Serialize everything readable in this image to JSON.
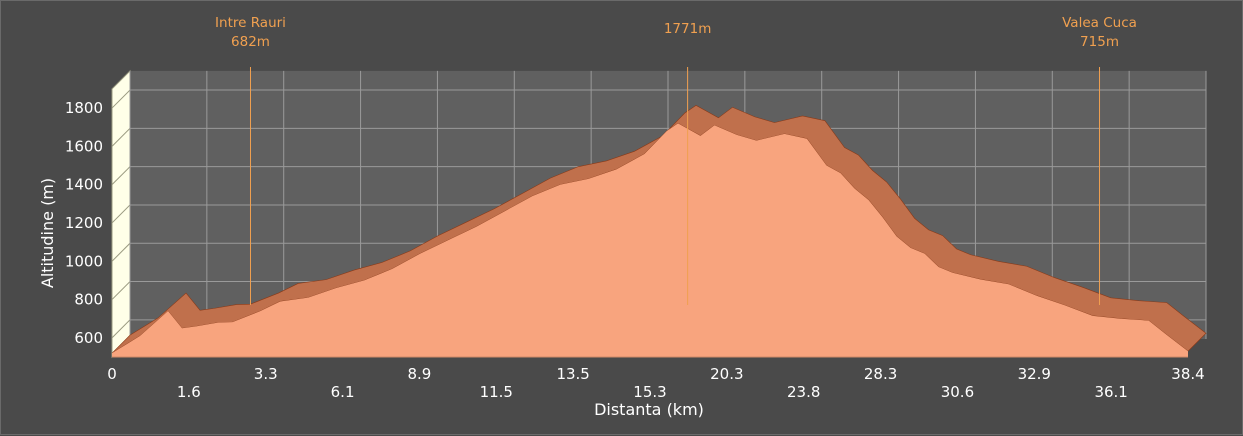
{
  "chart_data": {
    "type": "area",
    "xlabel": "Distanta (km)",
    "ylabel": "Altitudine (m)",
    "ylim": [
      500,
      1900
    ],
    "yticks": [
      "600",
      "800",
      "1000",
      "1200",
      "1400",
      "1600",
      "1800"
    ],
    "xticks_upper": [
      "0",
      "3.3",
      "8.9",
      "13.5",
      "20.3",
      "28.3",
      "32.9",
      "38.4"
    ],
    "xticks_lower": [
      "1.6",
      "6.1",
      "11.5",
      "15.3",
      "23.8",
      "30.6",
      "36.1"
    ],
    "grid": true,
    "fill_color": "#f8a47e",
    "top_color": "#c0704c",
    "wall_color": "#ffffe8",
    "annotations": [
      {
        "name": "Intre Rauri",
        "label": "682m",
        "x": 4.3
      },
      {
        "name": "",
        "label": "1771m",
        "x": 19.9
      },
      {
        "name": "Valea Cuca",
        "label": "715m",
        "x": 34.6
      }
    ],
    "x": [
      0,
      1.0,
      2.0,
      2.5,
      3.0,
      3.8,
      4.3,
      5.3,
      6.0,
      7.0,
      8.0,
      9.0,
      10.0,
      11.0,
      12.0,
      13.0,
      14.0,
      15.0,
      16.0,
      17.0,
      18.0,
      19.0,
      19.8,
      20.2,
      21.0,
      21.5,
      22.3,
      23.0,
      24.0,
      24.8,
      25.5,
      26.0,
      26.5,
      27.0,
      27.5,
      28.0,
      28.5,
      29.0,
      29.5,
      30.0,
      31.0,
      32.0,
      33.0,
      34.0,
      35.0,
      36.0,
      37.0,
      37.6,
      38.4
    ],
    "y": [
      520,
      610,
      740,
      650,
      660,
      680,
      682,
      740,
      790,
      810,
      860,
      900,
      960,
      1040,
      1110,
      1180,
      1260,
      1340,
      1400,
      1430,
      1480,
      1560,
      1680,
      1720,
      1655,
      1710,
      1660,
      1630,
      1665,
      1640,
      1500,
      1460,
      1380,
      1320,
      1230,
      1130,
      1070,
      1040,
      970,
      940,
      905,
      880,
      820,
      770,
      715,
      700,
      690,
      620,
      530
    ]
  }
}
